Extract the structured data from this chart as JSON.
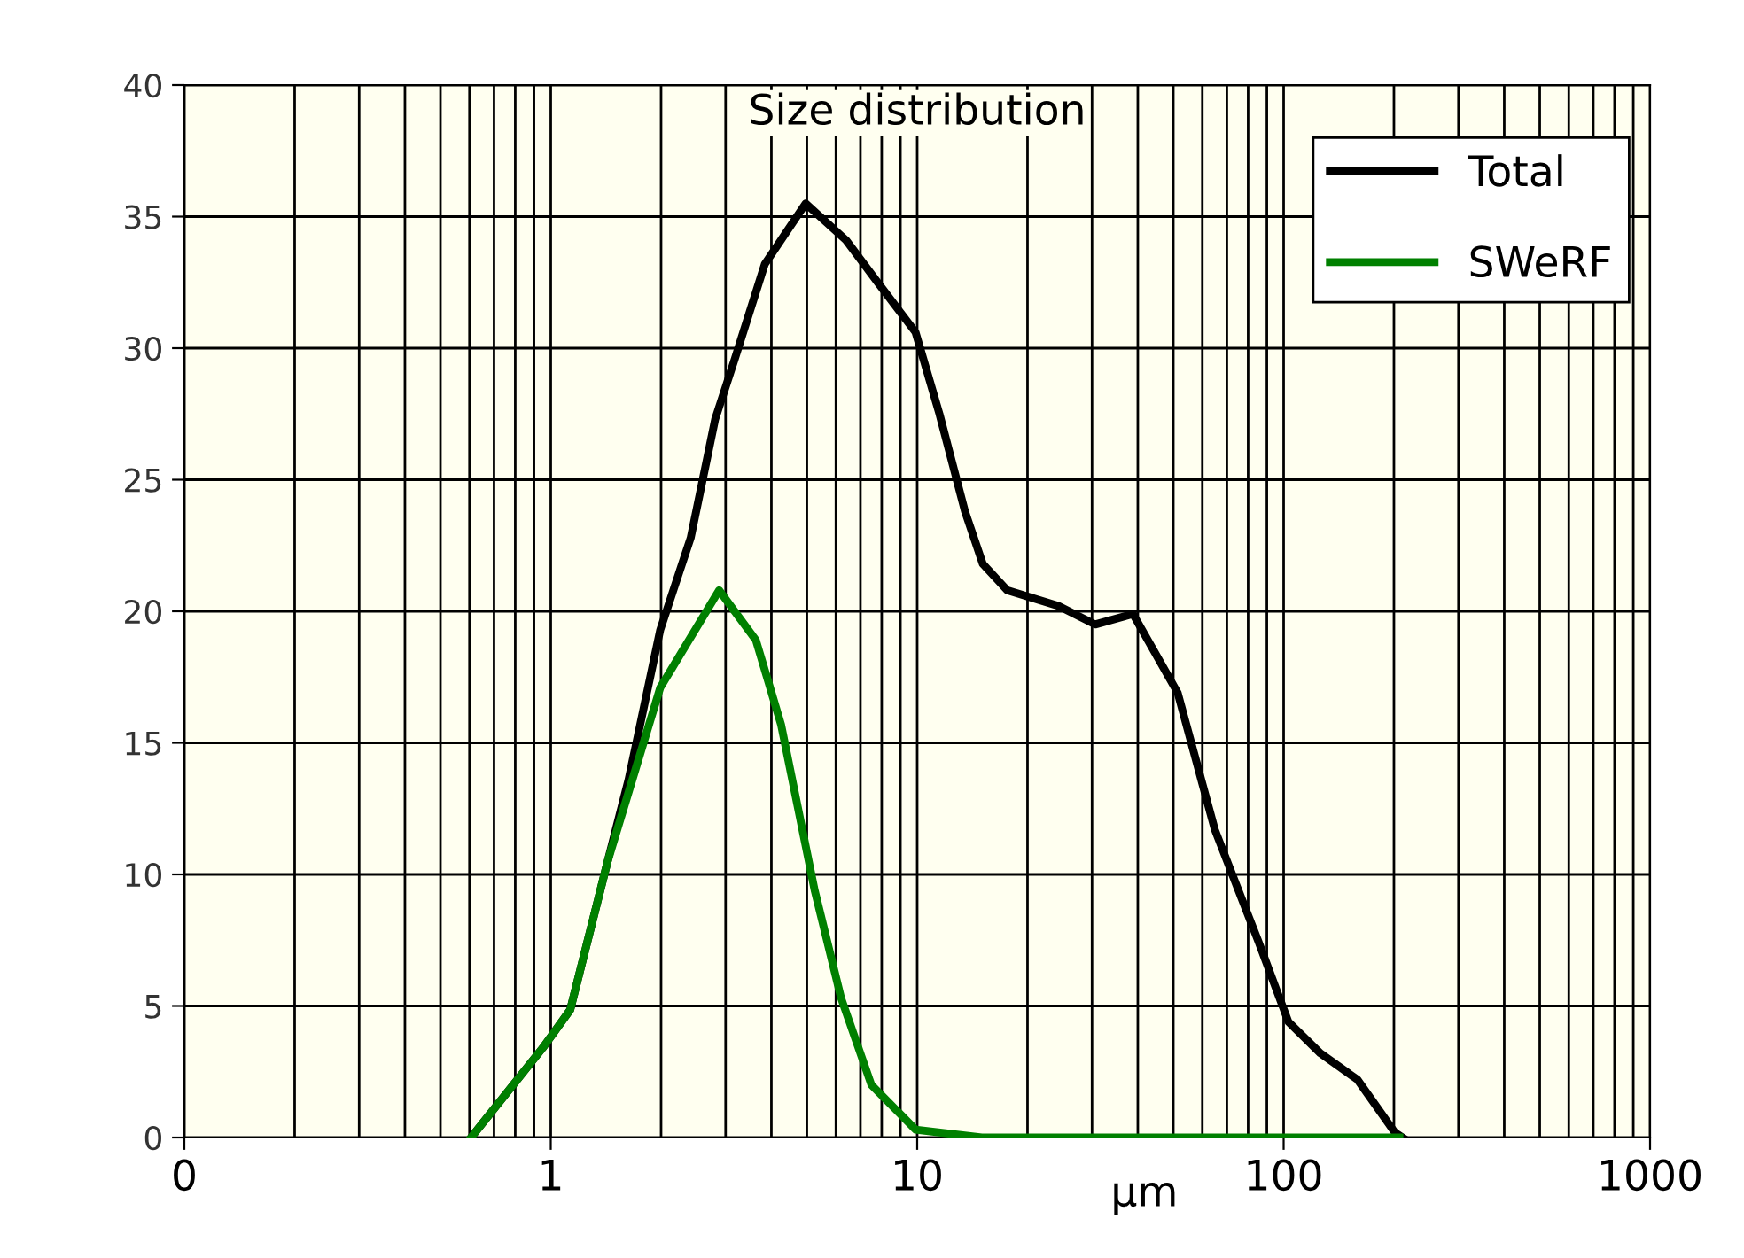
{
  "chart_data": {
    "type": "line",
    "title": "Size distribution",
    "xlabel": "μm",
    "log": "x",
    "xlim": [
      0.1,
      1000
    ],
    "xticks": [
      {
        "value": 0.1,
        "label": "0"
      },
      1,
      10,
      100,
      1000
    ],
    "ylim": [
      0,
      40
    ],
    "yticks": [
      0,
      5,
      10,
      15,
      20,
      25,
      30,
      35,
      40
    ],
    "grid": true,
    "legend": "top right",
    "marker": "none",
    "line_style": "solid",
    "series": [
      {
        "name": "Total",
        "color": "#000000",
        "x": [
          0.606,
          0.95,
          1.13,
          1.43,
          1.63,
          1.99,
          2.41,
          2.81,
          3.18,
          3.84,
          4.96,
          6.4,
          7.8,
          9.9,
          11.5,
          13.5,
          15.1,
          17.6,
          24.3,
          30.6,
          38.8,
          51.4,
          64.9,
          85.6,
          103,
          126,
          159,
          201,
          211
        ],
        "values": [
          0,
          3.4,
          4.85,
          10.5,
          13.6,
          19.3,
          22.8,
          27.3,
          29.6,
          33.2,
          35.5,
          34.1,
          32.5,
          30.6,
          27.5,
          23.8,
          21.8,
          20.8,
          20.2,
          19.5,
          19.9,
          16.9,
          11.7,
          7.4,
          4.4,
          3.2,
          2.2,
          0.2,
          0
        ]
      },
      {
        "name": "SWeRF",
        "color": "#008000",
        "x": [
          0.606,
          0.95,
          1.13,
          1.43,
          1.99,
          2.88,
          3.63,
          4.25,
          5.25,
          6.2,
          7.5,
          9.9,
          15,
          207
        ],
        "values": [
          0,
          3.4,
          4.85,
          10.5,
          17.1,
          20.8,
          18.9,
          15.7,
          9.4,
          5.3,
          2.0,
          0.3,
          0,
          0
        ]
      }
    ]
  }
}
